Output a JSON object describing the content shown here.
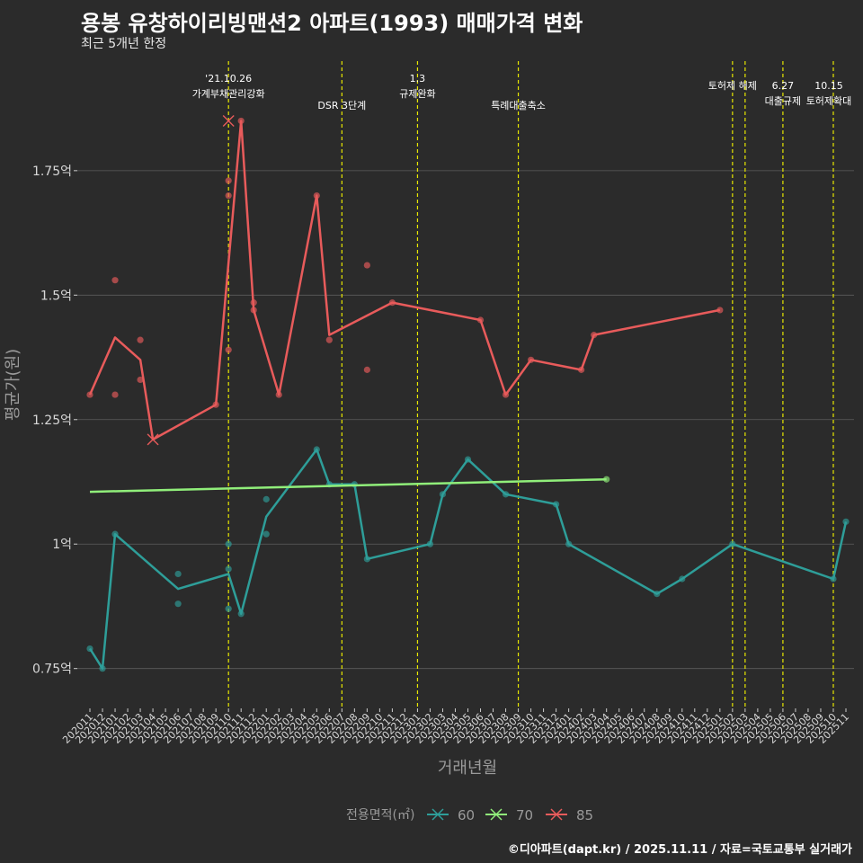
{
  "header": {
    "title": "용봉 유창하이리빙맨션2 아파트(1993) 매매가격 변화",
    "subtitle": "최근 5개년 한정"
  },
  "caption": "©디아파트(dapt.kr) / 2025.11.11 / 자료=국토교통부 실거래가",
  "colors": {
    "background": "#2b2b2b",
    "grid": "#5c5c5c",
    "event_line": "#e8e800",
    "s60": "#2e9e99",
    "s70": "#90ee7a",
    "s85": "#e85b5b"
  },
  "chart_data": {
    "type": "line",
    "xlabel": "거래년월",
    "ylabel": "평균가(원)",
    "ylim": [
      0.67,
      1.97
    ],
    "yticks": [
      {
        "value": 0.75,
        "label": "0.75억"
      },
      {
        "value": 1.0,
        "label": "1억"
      },
      {
        "value": 1.25,
        "label": "1.25억"
      },
      {
        "value": 1.5,
        "label": "1.5억"
      },
      {
        "value": 1.75,
        "label": "1.75억"
      }
    ],
    "x_categories": [
      "202011",
      "202012",
      "202101",
      "202102",
      "202103",
      "202104",
      "202105",
      "202106",
      "202107",
      "202108",
      "202109",
      "202110",
      "202111",
      "202112",
      "202201",
      "202202",
      "202203",
      "202204",
      "202205",
      "202206",
      "202207",
      "202208",
      "202209",
      "202210",
      "202211",
      "202212",
      "202301",
      "202302",
      "202303",
      "202304",
      "202305",
      "202306",
      "202307",
      "202308",
      "202309",
      "202310",
      "202311",
      "202312",
      "202401",
      "202402",
      "202403",
      "202404",
      "202405",
      "202406",
      "202407",
      "202408",
      "202409",
      "202410",
      "202411",
      "202412",
      "202501",
      "202502",
      "202503",
      "202504",
      "202505",
      "202506",
      "202507",
      "202508",
      "202509",
      "202510",
      "202511"
    ],
    "legend": {
      "title": "전용면적(㎡)",
      "entries": [
        "60",
        "70",
        "85"
      ]
    },
    "events": [
      {
        "x": 11,
        "lines": [
          "'21.10.26",
          "가계부채관리강화"
        ],
        "row": 0
      },
      {
        "x": 20,
        "lines": [
          "DSR 3단계"
        ],
        "row": 2
      },
      {
        "x": 26,
        "lines": [
          "1.3",
          "규제완화"
        ],
        "row": 0
      },
      {
        "x": 34,
        "lines": [
          "특례대출축소"
        ],
        "row": 2
      },
      {
        "x": 51,
        "lines": [
          "토허제 해제"
        ],
        "row": 1
      },
      {
        "x": 52,
        "lines": [],
        "row": 0
      },
      {
        "x": 55,
        "lines": [
          "6.27",
          "대출규제"
        ],
        "row": 1
      },
      {
        "x": 59,
        "lines": [
          "10.15",
          "토허제확대"
        ],
        "row": 1
      }
    ],
    "series": [
      {
        "name": "60",
        "line": [
          [
            0,
            0.79
          ],
          [
            1,
            0.75
          ],
          [
            2,
            1.02
          ],
          [
            7,
            0.91
          ],
          [
            11,
            0.94
          ],
          [
            12,
            0.86
          ],
          [
            14,
            1.055
          ],
          [
            18,
            1.19
          ],
          [
            19,
            1.12
          ],
          [
            21,
            1.12
          ],
          [
            22,
            0.97
          ],
          [
            27,
            1.0
          ],
          [
            28,
            1.1
          ],
          [
            30,
            1.17
          ],
          [
            33,
            1.1
          ],
          [
            37,
            1.08
          ],
          [
            38,
            1.0
          ],
          [
            45,
            0.9
          ],
          [
            47,
            0.93
          ],
          [
            51,
            1.0
          ],
          [
            59,
            0.93
          ],
          [
            60,
            1.045
          ]
        ],
        "points": [
          [
            0,
            0.79
          ],
          [
            1,
            0.75
          ],
          [
            2,
            1.02
          ],
          [
            7,
            0.94
          ],
          [
            7,
            0.88
          ],
          [
            11,
            1.0
          ],
          [
            11,
            0.95
          ],
          [
            11,
            0.87
          ],
          [
            12,
            0.86
          ],
          [
            14,
            1.09
          ],
          [
            14,
            1.02
          ],
          [
            18,
            1.19
          ],
          [
            19,
            1.12
          ],
          [
            21,
            1.12
          ],
          [
            22,
            0.97
          ],
          [
            27,
            1.0
          ],
          [
            28,
            1.1
          ],
          [
            30,
            1.17
          ],
          [
            33,
            1.1
          ],
          [
            37,
            1.08
          ],
          [
            38,
            1.0
          ],
          [
            45,
            0.9
          ],
          [
            47,
            0.93
          ],
          [
            51,
            1.0
          ],
          [
            59,
            0.93
          ],
          [
            60,
            1.045
          ]
        ]
      },
      {
        "name": "70",
        "line": [
          [
            0,
            1.105
          ],
          [
            41,
            1.13
          ]
        ],
        "points": [
          [
            41,
            1.13
          ]
        ]
      },
      {
        "name": "85",
        "line": [
          [
            0,
            1.3
          ],
          [
            2,
            1.415
          ],
          [
            4,
            1.37
          ],
          [
            5,
            1.21
          ],
          [
            10,
            1.28
          ],
          [
            12,
            1.85
          ],
          [
            13,
            1.47
          ],
          [
            15,
            1.3
          ],
          [
            18,
            1.7
          ],
          [
            19,
            1.42
          ],
          [
            24,
            1.485
          ],
          [
            31,
            1.45
          ],
          [
            33,
            1.3
          ],
          [
            35,
            1.37
          ],
          [
            39,
            1.35
          ],
          [
            40,
            1.42
          ],
          [
            50,
            1.47
          ]
        ],
        "points": [
          [
            0,
            1.3
          ],
          [
            2,
            1.53
          ],
          [
            2,
            1.3
          ],
          [
            4,
            1.41
          ],
          [
            4,
            1.33
          ],
          [
            10,
            1.28
          ],
          [
            11,
            1.73
          ],
          [
            11,
            1.7
          ],
          [
            11,
            1.39
          ],
          [
            12,
            1.85
          ],
          [
            13,
            1.485
          ],
          [
            13,
            1.47
          ],
          [
            15,
            1.3
          ],
          [
            18,
            1.7
          ],
          [
            19,
            1.41
          ],
          [
            22,
            1.56
          ],
          [
            22,
            1.35
          ],
          [
            24,
            1.485
          ],
          [
            31,
            1.45
          ],
          [
            33,
            1.3
          ],
          [
            35,
            1.37
          ],
          [
            39,
            1.35
          ],
          [
            40,
            1.42
          ],
          [
            50,
            1.47
          ]
        ],
        "crosses": [
          [
            5,
            1.21
          ],
          [
            11,
            1.85
          ]
        ]
      }
    ]
  }
}
